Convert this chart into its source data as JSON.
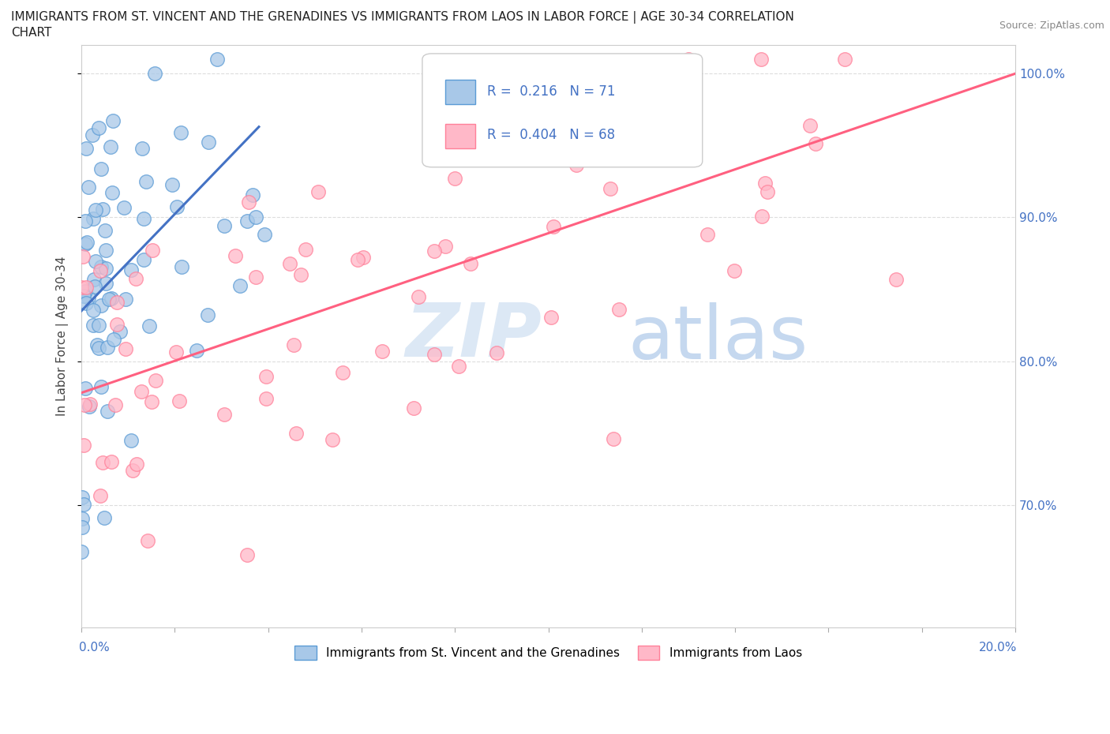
{
  "title_line1": "IMMIGRANTS FROM ST. VINCENT AND THE GRENADINES VS IMMIGRANTS FROM LAOS IN LABOR FORCE | AGE 30-34 CORRELATION",
  "title_line2": "CHART",
  "source_text": "Source: ZipAtlas.com",
  "ylabel": "In Labor Force | Age 30-34",
  "xlim": [
    0.0,
    0.2
  ],
  "ylim": [
    0.615,
    1.02
  ],
  "color_svg_fill": "#A8C8E8",
  "color_svg_edge": "#5B9BD5",
  "color_laos_fill": "#FFB8C8",
  "color_laos_edge": "#FF8099",
  "color_svg_line": "#4472C4",
  "color_laos_line": "#FF6080",
  "color_grid": "#dddddd",
  "color_right_tick": "#4472C4",
  "R_svg": 0.216,
  "N_svg": 71,
  "R_laos": 0.404,
  "N_laos": 68,
  "legend_R_color": "#4472C4",
  "legend_box_edge": "#cccccc",
  "watermark_zip_color": "#d0dff0",
  "watermark_atlas_color": "#c8d8f0",
  "svg_line_x0": 0.0,
  "svg_line_x1": 0.038,
  "svg_line_y0": 0.835,
  "svg_line_y1": 0.963,
  "laos_line_x0": 0.0,
  "laos_line_x1": 0.2,
  "laos_line_y0": 0.778,
  "laos_line_y1": 1.0
}
